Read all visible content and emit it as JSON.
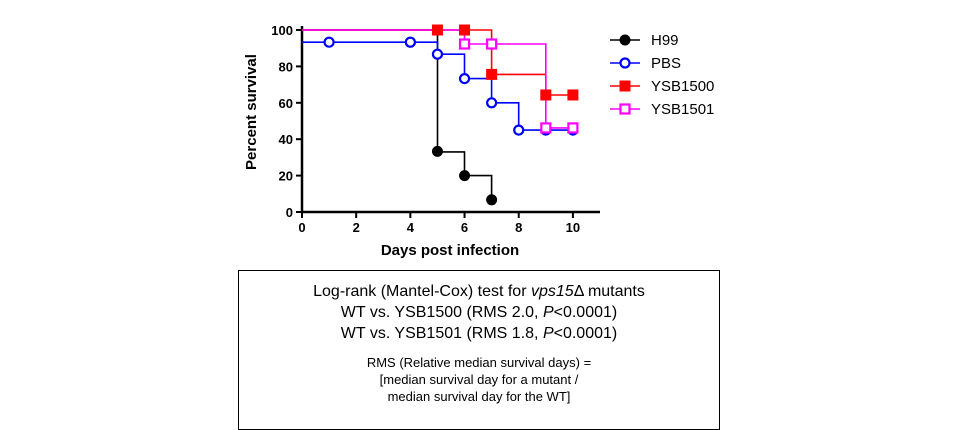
{
  "chart_data": {
    "type": "line",
    "step": true,
    "xlabel": "Days post infection",
    "ylabel": "Percent survival",
    "xlim": [
      0,
      11
    ],
    "ylim": [
      0,
      100
    ],
    "xticks": [
      0,
      2,
      4,
      6,
      8,
      10
    ],
    "yticks": [
      0,
      20,
      40,
      60,
      80,
      100
    ],
    "legend_position": "right",
    "series": [
      {
        "name": "H99",
        "color": "#000000",
        "marker": "filled-circle",
        "x": [
          0,
          5,
          6,
          7
        ],
        "y": [
          100,
          33,
          20,
          6.7
        ],
        "markers": [
          [
            4,
            93.3
          ],
          [
            5,
            33.3
          ],
          [
            6,
            20
          ],
          [
            7,
            6.7
          ]
        ]
      },
      {
        "name": "PBS",
        "color": "#0000ff",
        "marker": "open-circle",
        "x": [
          0,
          1,
          5,
          6,
          7,
          8,
          9,
          10
        ],
        "y": [
          93.3,
          93.3,
          86.7,
          73.3,
          60,
          45,
          45,
          45
        ],
        "markers": [
          [
            1,
            93.3
          ],
          [
            4,
            93.3
          ],
          [
            5,
            86.7
          ],
          [
            6,
            73.3
          ],
          [
            7,
            60
          ],
          [
            8,
            45
          ],
          [
            9,
            45
          ],
          [
            10,
            45
          ]
        ]
      },
      {
        "name": "YSB1500",
        "color": "#ff0000",
        "marker": "filled-square",
        "x": [
          0,
          7,
          9,
          10
        ],
        "y": [
          100,
          75.6,
          64.3,
          64.3
        ],
        "markers": [
          [
            5,
            100
          ],
          [
            6,
            100
          ],
          [
            7,
            75.6
          ],
          [
            9,
            64.3
          ],
          [
            10,
            64.3
          ]
        ]
      },
      {
        "name": "YSB1501",
        "color": "#ff00ff",
        "marker": "open-square",
        "x": [
          0,
          6,
          9,
          10
        ],
        "y": [
          100,
          92.3,
          46.2,
          46.2
        ],
        "markers": [
          [
            6,
            92.3
          ],
          [
            7,
            92.3
          ],
          [
            9,
            46.2
          ],
          [
            10,
            46.2
          ]
        ]
      }
    ]
  },
  "stats_box": {
    "line1_prefix": "Log-rank (Mantel-Cox) test for ",
    "line1_gene": "vps15",
    "line1_suffix": "Δ mutants",
    "line2_prefix": "WT vs. YSB1500 (RMS 2.0, ",
    "line2_p": "P",
    "line2_suffix": "<0.0001)",
    "line3_prefix": "WT vs. YSB1501 (RMS 1.8, ",
    "line3_p": "P",
    "line3_suffix": "<0.0001)",
    "rms_line1": "RMS (Relative median survival days) =",
    "rms_line2": "[median survival day for a mutant  /",
    "rms_line3": "median survival day for the WT]"
  }
}
